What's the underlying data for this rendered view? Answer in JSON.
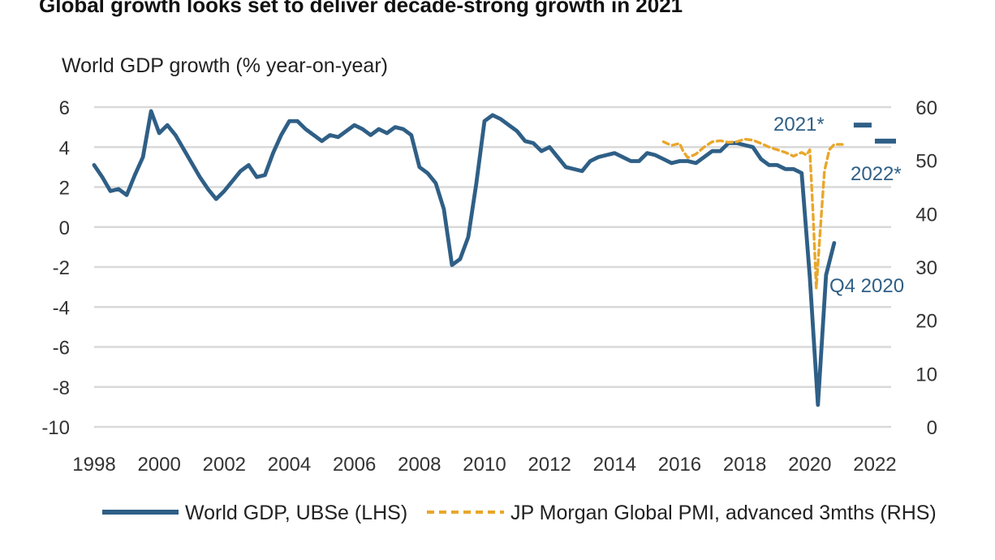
{
  "chart_data": {
    "type": "line",
    "title": "Global growth looks set to deliver decade-strong growth in 2021",
    "ylabel": "World GDP growth (% year-on-year)",
    "xlabel": "",
    "xlim": [
      1998,
      2022.5
    ],
    "ylim_left": [
      -10,
      6
    ],
    "ylim_right": [
      0,
      60
    ],
    "x_ticks": [
      "1998",
      "2000",
      "2002",
      "2004",
      "2006",
      "2008",
      "2010",
      "2012",
      "2014",
      "2016",
      "2018",
      "2020",
      "2022"
    ],
    "y_ticks_left": [
      "6",
      "4",
      "2",
      "0",
      "-2",
      "-4",
      "-6",
      "-8",
      "-10"
    ],
    "y_ticks_right": [
      "60",
      "50",
      "40",
      "30",
      "20",
      "10",
      "0"
    ],
    "grid": "horizontal",
    "legend_placement": "bottom",
    "series": [
      {
        "name": "World GDP, UBSe (LHS)",
        "axis": "left",
        "color": "#2f5f86",
        "style": "solid",
        "x": [
          1998.0,
          1998.25,
          1998.5,
          1998.75,
          1999.0,
          1999.25,
          1999.5,
          1999.75,
          2000.0,
          2000.25,
          2000.5,
          2000.75,
          2001.0,
          2001.25,
          2001.5,
          2001.75,
          2002.0,
          2002.25,
          2002.5,
          2002.75,
          2003.0,
          2003.25,
          2003.5,
          2003.75,
          2004.0,
          2004.25,
          2004.5,
          2004.75,
          2005.0,
          2005.25,
          2005.5,
          2005.75,
          2006.0,
          2006.25,
          2006.5,
          2006.75,
          2007.0,
          2007.25,
          2007.5,
          2007.75,
          2008.0,
          2008.25,
          2008.5,
          2008.75,
          2009.0,
          2009.25,
          2009.5,
          2009.75,
          2010.0,
          2010.25,
          2010.5,
          2010.75,
          2011.0,
          2011.25,
          2011.5,
          2011.75,
          2012.0,
          2012.25,
          2012.5,
          2012.75,
          2013.0,
          2013.25,
          2013.5,
          2013.75,
          2014.0,
          2014.25,
          2014.5,
          2014.75,
          2015.0,
          2015.25,
          2015.5,
          2015.75,
          2016.0,
          2016.25,
          2016.5,
          2016.75,
          2017.0,
          2017.25,
          2017.5,
          2017.75,
          2018.0,
          2018.25,
          2018.5,
          2018.75,
          2019.0,
          2019.25,
          2019.5,
          2019.75,
          2020.0,
          2020.25,
          2020.5,
          2020.75
        ],
        "values": [
          3.1,
          2.5,
          1.8,
          1.9,
          1.6,
          2.6,
          3.5,
          5.8,
          4.7,
          5.1,
          4.6,
          3.9,
          3.2,
          2.5,
          1.9,
          1.4,
          1.8,
          2.3,
          2.8,
          3.1,
          2.5,
          2.6,
          3.7,
          4.6,
          5.3,
          5.3,
          4.9,
          4.6,
          4.3,
          4.6,
          4.5,
          4.8,
          5.1,
          4.9,
          4.6,
          4.9,
          4.7,
          5.0,
          4.9,
          4.6,
          3.0,
          2.7,
          2.2,
          0.9,
          -1.9,
          -1.6,
          -0.5,
          2.2,
          5.3,
          5.6,
          5.4,
          5.1,
          4.8,
          4.3,
          4.2,
          3.8,
          4.0,
          3.5,
          3.0,
          2.9,
          2.8,
          3.3,
          3.5,
          3.6,
          3.7,
          3.5,
          3.3,
          3.3,
          3.7,
          3.6,
          3.4,
          3.2,
          3.3,
          3.3,
          3.2,
          3.5,
          3.8,
          3.8,
          4.2,
          4.2,
          4.1,
          4.0,
          3.4,
          3.1,
          3.1,
          2.9,
          2.9,
          2.7,
          -2.5,
          -8.9,
          -2.4,
          -0.8
        ]
      },
      {
        "name": "JP Morgan Global PMI, advanced 3mths (RHS)",
        "axis": "right",
        "color": "#e9a72b",
        "style": "dashed",
        "x": [
          2015.5,
          2015.75,
          2016.0,
          2016.1,
          2016.25,
          2016.5,
          2016.75,
          2017.0,
          2017.25,
          2017.5,
          2017.75,
          2018.0,
          2018.25,
          2018.5,
          2018.75,
          2019.0,
          2019.25,
          2019.5,
          2019.75,
          2019.9,
          2020.0,
          2020.1,
          2020.2,
          2020.3,
          2020.45,
          2020.6,
          2020.75,
          2021.0
        ],
        "values": [
          53.5,
          52.8,
          53.2,
          51.8,
          50.5,
          51.2,
          52.5,
          53.5,
          53.7,
          53.4,
          53.5,
          54.0,
          53.8,
          53.2,
          52.5,
          52.0,
          51.5,
          50.8,
          51.5,
          51.0,
          52.0,
          40.0,
          26.0,
          35.0,
          48.0,
          52.0,
          53.0,
          53.0
        ]
      }
    ],
    "forecasts": [
      {
        "label": "2021*",
        "x_start": 2021.35,
        "x_end": 2021.9,
        "value": 5.1,
        "axis": "left"
      },
      {
        "label": "2022*",
        "x_start": 2022.0,
        "x_end": 2022.65,
        "value": 4.3,
        "axis": "left"
      }
    ],
    "annotations": [
      "2021*",
      "2022*",
      "Q4 2020"
    ],
    "colors": {
      "gdp": "#2f5f86",
      "pmi": "#e9a72b",
      "grid": "#d9d9d9",
      "text": "#333333",
      "annotation": "#2f5f86"
    },
    "legend": [
      {
        "label": "World GDP, UBSe (LHS)",
        "color": "#2f5f86",
        "style": "solid"
      },
      {
        "label": "JP Morgan Global PMI, advanced 3mths (RHS)",
        "color": "#e9a72b",
        "style": "dashed"
      }
    ]
  }
}
